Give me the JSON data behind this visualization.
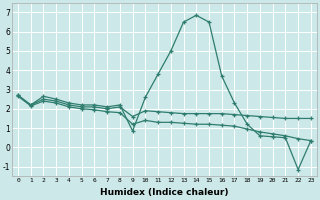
{
  "xlabel": "Humidex (Indice chaleur)",
  "background_color": "#cde8e8",
  "grid_color": "#b0d4d4",
  "line_color": "#2e7d6e",
  "xlim": [
    -0.5,
    23.5
  ],
  "ylim": [
    -1.5,
    7.5
  ],
  "xticks": [
    0,
    1,
    2,
    3,
    4,
    5,
    6,
    7,
    8,
    9,
    10,
    11,
    12,
    13,
    14,
    15,
    16,
    17,
    18,
    19,
    20,
    21,
    22,
    23
  ],
  "yticks": [
    -1,
    0,
    1,
    2,
    3,
    4,
    5,
    6,
    7
  ],
  "series1_x": [
    0,
    1,
    2,
    3,
    4,
    5,
    6,
    7,
    8,
    9,
    10,
    11,
    12,
    13,
    14,
    15,
    16,
    17,
    18,
    19,
    20,
    21,
    22,
    23
  ],
  "series1_y": [
    2.7,
    2.2,
    2.65,
    2.5,
    2.3,
    2.2,
    2.2,
    2.1,
    2.2,
    0.85,
    2.6,
    3.8,
    5.0,
    6.5,
    6.85,
    6.5,
    3.7,
    2.3,
    1.2,
    0.6,
    0.55,
    0.5,
    -1.15,
    0.35
  ],
  "series2_x": [
    0,
    1,
    2,
    3,
    4,
    5,
    6,
    7,
    8,
    9,
    10,
    11,
    12,
    13,
    14,
    15,
    16,
    17,
    18,
    19,
    20,
    21,
    22,
    23
  ],
  "series2_y": [
    2.7,
    2.2,
    2.5,
    2.4,
    2.2,
    2.1,
    2.1,
    2.0,
    2.1,
    1.6,
    1.9,
    1.85,
    1.8,
    1.75,
    1.75,
    1.75,
    1.75,
    1.7,
    1.65,
    1.6,
    1.55,
    1.5,
    1.5,
    1.5
  ],
  "series3_x": [
    0,
    1,
    2,
    3,
    4,
    5,
    6,
    7,
    8,
    9,
    10,
    11,
    12,
    13,
    14,
    15,
    16,
    17,
    18,
    19,
    20,
    21,
    22,
    23
  ],
  "series3_y": [
    2.65,
    2.15,
    2.4,
    2.3,
    2.1,
    2.0,
    1.95,
    1.85,
    1.8,
    1.2,
    1.4,
    1.3,
    1.3,
    1.25,
    1.2,
    1.2,
    1.15,
    1.1,
    0.95,
    0.8,
    0.7,
    0.6,
    0.45,
    0.35
  ]
}
